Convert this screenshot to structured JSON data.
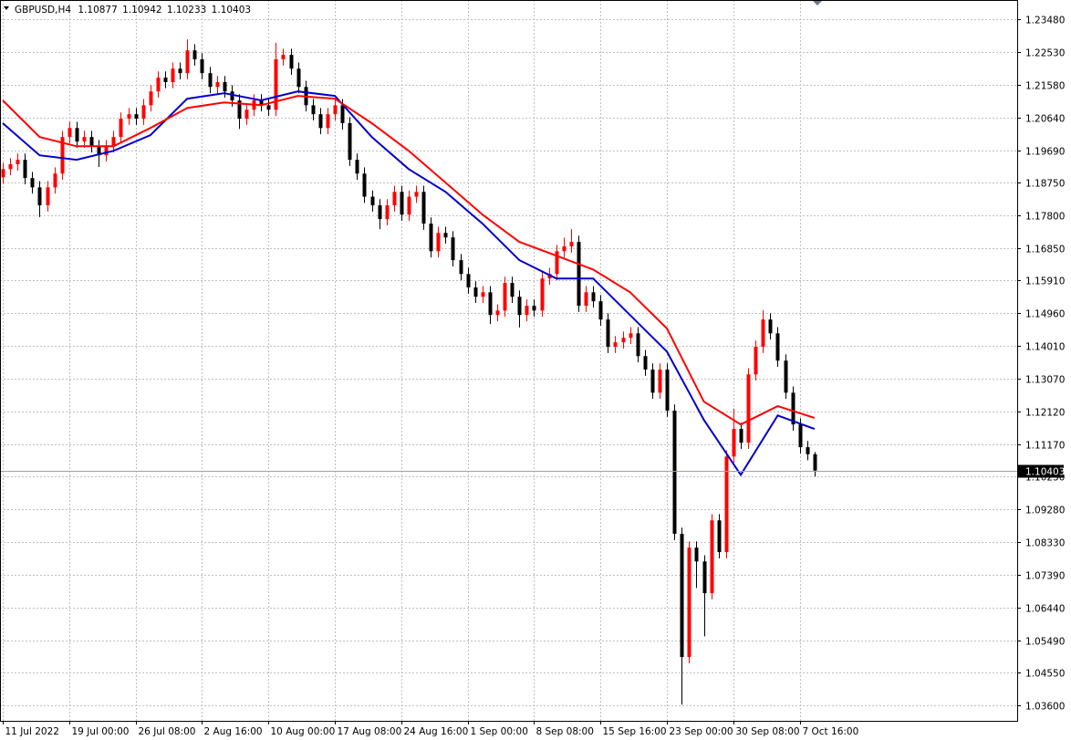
{
  "chart_data": {
    "type": "candlestick",
    "title": "GBPUSD,H4",
    "up_color": "#ff0000",
    "down_color": "#000000",
    "grid": true,
    "open": [
      1.189,
      1.1914,
      1.1928,
      1.1941,
      1.1888,
      1.1861,
      1.1809,
      1.1861,
      1.1901,
      1.2007,
      1.2033,
      1.1994,
      1.2007,
      1.198,
      1.1954,
      1.198,
      1.2007,
      1.206,
      1.2073,
      1.206,
      1.2099,
      1.2139,
      1.2179,
      1.2166,
      1.2205,
      1.2192,
      1.2258,
      1.2232,
      1.2192,
      1.2152,
      1.2166,
      1.2139,
      1.2113,
      1.206,
      1.2086,
      1.2113,
      1.2099,
      1.2086,
      1.2232,
      1.2245,
      1.2205,
      1.2152,
      1.2099,
      1.2073,
      1.2033,
      1.2073,
      1.2099,
      1.2047,
      1.1941,
      1.1901,
      1.1834,
      1.1809,
      1.1769,
      1.1809,
      1.1848,
      1.1782,
      1.1834,
      1.1848,
      1.1756,
      1.1676,
      1.1729,
      1.1716,
      1.165,
      1.161,
      1.1571,
      1.1544,
      1.1557,
      1.1491,
      1.1504,
      1.1584,
      1.1544,
      1.1491,
      1.1518,
      1.1504,
      1.1597,
      1.161,
      1.1676,
      1.169,
      1.1703,
      1.1518,
      1.1557,
      1.1531,
      1.1478,
      1.1399,
      1.1412,
      1.1425,
      1.1438,
      1.1372,
      1.1333,
      1.1266,
      1.1333,
      1.1214,
      1.0857,
      1.05,
      1.0817,
      1.0777,
      1.0685,
      1.0896,
      1.0804,
      1.1081,
      1.1161,
      1.1121,
      1.1319,
      1.1399,
      1.1478,
      1.1438,
      1.1359,
      1.1266,
      1.1174,
      1.1108,
      1.10877
    ],
    "high": [
      1.1932,
      1.1946,
      1.1959,
      1.1959,
      1.1906,
      1.1879,
      1.1879,
      1.1919,
      1.2025,
      1.2051,
      1.2051,
      1.2025,
      1.2025,
      1.1998,
      1.1998,
      1.2025,
      1.2078,
      1.2091,
      1.2091,
      1.2117,
      1.2157,
      1.2197,
      1.2197,
      1.2223,
      1.2223,
      1.229,
      1.2276,
      1.225,
      1.221,
      1.2184,
      1.2184,
      1.2157,
      1.2131,
      1.2104,
      1.2131,
      1.2131,
      1.2117,
      1.228,
      1.2263,
      1.2263,
      1.2223,
      1.217,
      1.2117,
      1.2091,
      1.2091,
      1.2117,
      1.2117,
      1.2065,
      1.1959,
      1.1919,
      1.1852,
      1.1827,
      1.1827,
      1.1866,
      1.1866,
      1.1852,
      1.1866,
      1.1866,
      1.1774,
      1.1747,
      1.1747,
      1.1734,
      1.1668,
      1.1628,
      1.1589,
      1.1575,
      1.1575,
      1.1522,
      1.1602,
      1.1602,
      1.1562,
      1.1536,
      1.1536,
      1.1615,
      1.1628,
      1.1694,
      1.1715,
      1.174,
      1.1721,
      1.1575,
      1.1575,
      1.1549,
      1.1496,
      1.143,
      1.1443,
      1.1456,
      1.1456,
      1.139,
      1.1351,
      1.1351,
      1.1351,
      1.1232,
      1.0875,
      1.0835,
      1.0835,
      1.0795,
      1.0914,
      1.0914,
      1.1099,
      1.122,
      1.1179,
      1.1337,
      1.1417,
      1.1505,
      1.1496,
      1.1456,
      1.1377,
      1.1284,
      1.1192,
      1.1126,
      1.10942
    ],
    "low": [
      1.1872,
      1.1896,
      1.191,
      1.187,
      1.1843,
      1.1775,
      1.1791,
      1.1843,
      1.1883,
      1.1989,
      1.1976,
      1.1976,
      1.1962,
      1.192,
      1.1936,
      1.1962,
      1.1989,
      1.2042,
      1.2042,
      1.2042,
      1.2081,
      1.2121,
      1.2148,
      1.2148,
      1.2174,
      1.2174,
      1.2214,
      1.2174,
      1.2134,
      1.2134,
      1.2121,
      1.2095,
      1.203,
      1.2042,
      1.2068,
      1.2081,
      1.2068,
      1.2068,
      1.2214,
      1.2187,
      1.2134,
      1.2081,
      1.2055,
      1.2015,
      1.2015,
      1.2055,
      1.2029,
      1.1923,
      1.1883,
      1.1816,
      1.1791,
      1.174,
      1.1751,
      1.1791,
      1.1764,
      1.1764,
      1.1816,
      1.1738,
      1.1658,
      1.1658,
      1.1698,
      1.1632,
      1.1592,
      1.1553,
      1.1526,
      1.1526,
      1.1465,
      1.1473,
      1.1486,
      1.1526,
      1.1455,
      1.1473,
      1.1486,
      1.1486,
      1.1579,
      1.1592,
      1.1658,
      1.1672,
      1.15,
      1.15,
      1.1513,
      1.146,
      1.1381,
      1.1381,
      1.1394,
      1.1407,
      1.1354,
      1.1315,
      1.1248,
      1.1248,
      1.1196,
      1.0839,
      1.0362,
      1.0482,
      1.07,
      1.056,
      1.0667,
      1.0786,
      1.0786,
      1.1063,
      1.1103,
      1.1103,
      1.1301,
      1.1381,
      1.142,
      1.1341,
      1.1248,
      1.1156,
      1.109,
      1.107,
      1.10233
    ],
    "close": [
      1.1914,
      1.1928,
      1.1941,
      1.1888,
      1.1861,
      1.1809,
      1.1861,
      1.1901,
      1.2007,
      1.2033,
      1.1994,
      1.2007,
      1.198,
      1.1954,
      1.198,
      1.2007,
      1.206,
      1.2073,
      1.206,
      1.2099,
      1.2139,
      1.2179,
      1.2166,
      1.2205,
      1.2192,
      1.2258,
      1.2232,
      1.2192,
      1.2152,
      1.2166,
      1.2139,
      1.2113,
      1.206,
      1.2086,
      1.2113,
      1.2099,
      1.2086,
      1.2232,
      1.2245,
      1.2205,
      1.2152,
      1.2099,
      1.2073,
      1.2033,
      1.2073,
      1.2099,
      1.2047,
      1.1941,
      1.1901,
      1.1834,
      1.1809,
      1.1769,
      1.1809,
      1.1848,
      1.1782,
      1.1834,
      1.1848,
      1.1756,
      1.1676,
      1.1729,
      1.1716,
      1.165,
      1.161,
      1.1571,
      1.1544,
      1.1557,
      1.1491,
      1.1504,
      1.1584,
      1.1544,
      1.1491,
      1.1518,
      1.1504,
      1.1597,
      1.161,
      1.1676,
      1.169,
      1.1703,
      1.1518,
      1.1557,
      1.1531,
      1.1478,
      1.1399,
      1.1412,
      1.1425,
      1.1438,
      1.1372,
      1.1333,
      1.1266,
      1.1333,
      1.1214,
      1.0857,
      1.05,
      1.0817,
      1.0777,
      1.0685,
      1.0896,
      1.0804,
      1.1081,
      1.1161,
      1.1121,
      1.1319,
      1.1399,
      1.1478,
      1.1438,
      1.1359,
      1.1266,
      1.1174,
      1.1108,
      1.10877,
      1.10403
    ],
    "ma": [
      {
        "color": "#0000cc",
        "x": [
          0,
          5,
          10,
          15,
          20,
          25,
          30,
          35,
          40,
          45,
          50,
          55,
          60,
          65,
          70,
          75,
          80,
          85,
          90,
          95,
          100,
          105,
          110
        ],
        "values": [
          1.2047,
          1.1954,
          1.1941,
          1.1967,
          1.2012,
          1.2118,
          1.2134,
          1.2113,
          1.2139,
          1.2126,
          1.2007,
          1.1914,
          1.1848,
          1.1756,
          1.165,
          1.1597,
          1.1597,
          1.1491,
          1.1385,
          1.1187,
          1.1028,
          1.12,
          1.1161
        ]
      },
      {
        "color": "#ff0000",
        "x": [
          0,
          5,
          10,
          15,
          20,
          25,
          30,
          35,
          40,
          45,
          50,
          55,
          60,
          65,
          70,
          75,
          80,
          85,
          90,
          95,
          100,
          105,
          110
        ],
        "values": [
          1.2113,
          1.2007,
          1.198,
          1.198,
          1.2033,
          1.2091,
          1.2107,
          1.2099,
          1.2126,
          1.2118,
          1.2047,
          1.1967,
          1.1875,
          1.1782,
          1.1703,
          1.1663,
          1.1623,
          1.1557,
          1.1452,
          1.124,
          1.1174,
          1.1227,
          1.1193
        ]
      }
    ],
    "xlim": [
      -0.37,
      137.45
    ],
    "xticks": [
      {
        "value": 0,
        "label": "11 Jul 2022"
      },
      {
        "value": 9,
        "label": "19 Jul 00:00"
      },
      {
        "value": 18,
        "label": "26 Jul 08:00"
      },
      {
        "value": 27,
        "label": "2 Aug 16:00"
      },
      {
        "value": 36,
        "label": "10 Aug 00:00"
      },
      {
        "value": 45,
        "label": "17 Aug 08:00"
      },
      {
        "value": 54,
        "label": "24 Aug 16:00"
      },
      {
        "value": 63,
        "label": "1 Sep 00:00"
      },
      {
        "value": 72,
        "label": "8 Sep 08:00"
      },
      {
        "value": 81,
        "label": "15 Sep 16:00"
      },
      {
        "value": 90,
        "label": "23 Sep 00:00"
      },
      {
        "value": 99,
        "label": "30 Sep 08:00"
      },
      {
        "value": 108,
        "label": "7 Oct 16:00"
      }
    ],
    "ylim": [
      1.0315,
      1.2404
    ],
    "yticks": [
      {
        "value": 1.2348,
        "label": "1.23480"
      },
      {
        "value": 1.2253,
        "label": "1.22530"
      },
      {
        "value": 1.2158,
        "label": "1.21580"
      },
      {
        "value": 1.2064,
        "label": "1.20640"
      },
      {
        "value": 1.1969,
        "label": "1.19690"
      },
      {
        "value": 1.1875,
        "label": "1.18750"
      },
      {
        "value": 1.178,
        "label": "1.17800"
      },
      {
        "value": 1.1685,
        "label": "1.16850"
      },
      {
        "value": 1.1591,
        "label": "1.15910"
      },
      {
        "value": 1.1496,
        "label": "1.14960"
      },
      {
        "value": 1.1401,
        "label": "1.14010"
      },
      {
        "value": 1.1307,
        "label": "1.13070"
      },
      {
        "value": 1.1212,
        "label": "1.12120"
      },
      {
        "value": 1.1117,
        "label": "1.11170"
      },
      {
        "value": 1.1023,
        "label": "1.10230"
      },
      {
        "value": 1.0928,
        "label": "1.09280"
      },
      {
        "value": 1.0833,
        "label": "1.08330"
      },
      {
        "value": 1.0739,
        "label": "1.07390"
      },
      {
        "value": 1.0644,
        "label": "1.06440"
      },
      {
        "value": 1.0549,
        "label": "1.05490"
      },
      {
        "value": 1.0455,
        "label": "1.04550"
      },
      {
        "value": 1.036,
        "label": "1.03600"
      }
    ]
  }
}
